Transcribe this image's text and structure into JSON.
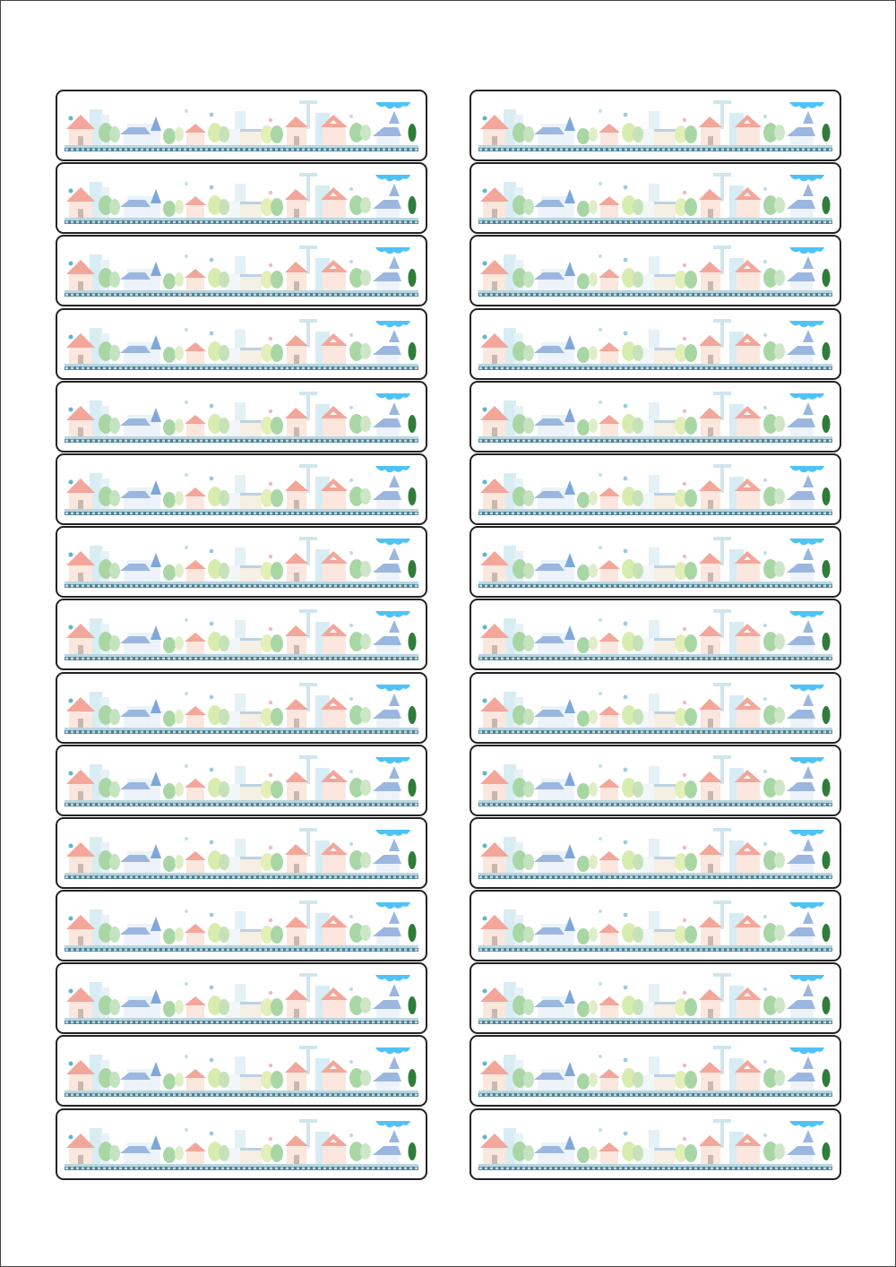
{
  "sheet": {
    "label_count_per_column": 15,
    "columns": [
      "left",
      "right"
    ],
    "label_art": "pastel-town-skyline",
    "colors": {
      "outline": "#222222",
      "roof_red": "#f3a69a",
      "tree_green": "#a9d6a5",
      "tree_dark": "#2e7d3a",
      "roof_blue": "#9bb7e0",
      "sky_cloud": "#4fc3f7",
      "ground": "#2f6f86",
      "building": "#d8ecf4"
    }
  }
}
